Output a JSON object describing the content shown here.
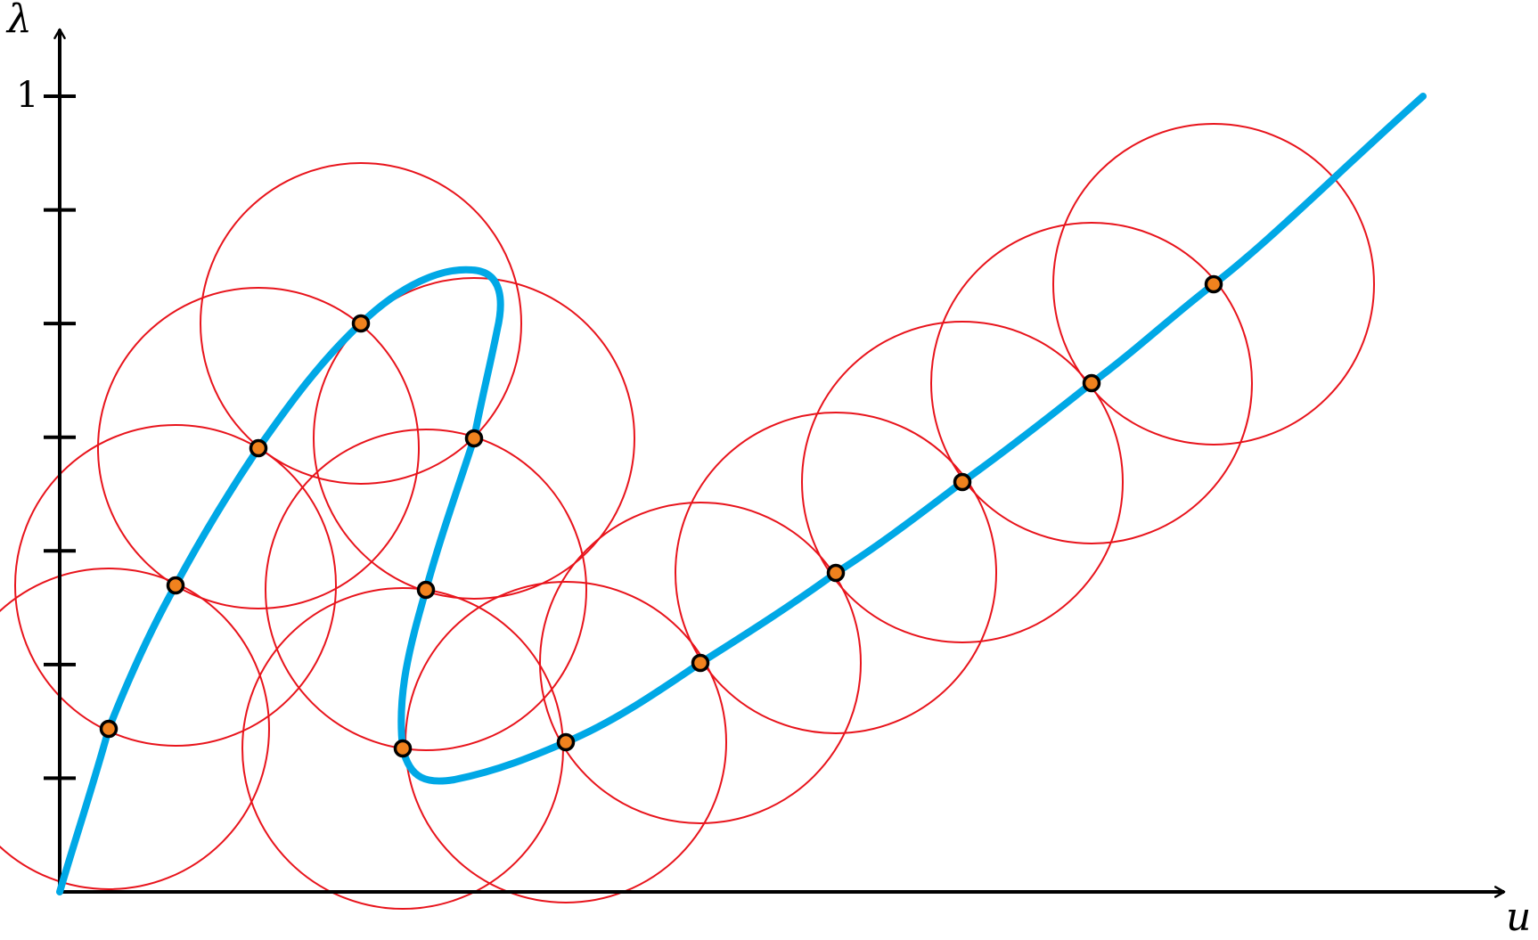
{
  "axes": {
    "x_label": "u",
    "y_label": "λ",
    "y_tick_label_top": "1",
    "y_tick_count": 7
  },
  "colors": {
    "curve": "#00a8e6",
    "circles": "#e8141c",
    "points": "#f0821e",
    "axes": "#000000"
  }
}
